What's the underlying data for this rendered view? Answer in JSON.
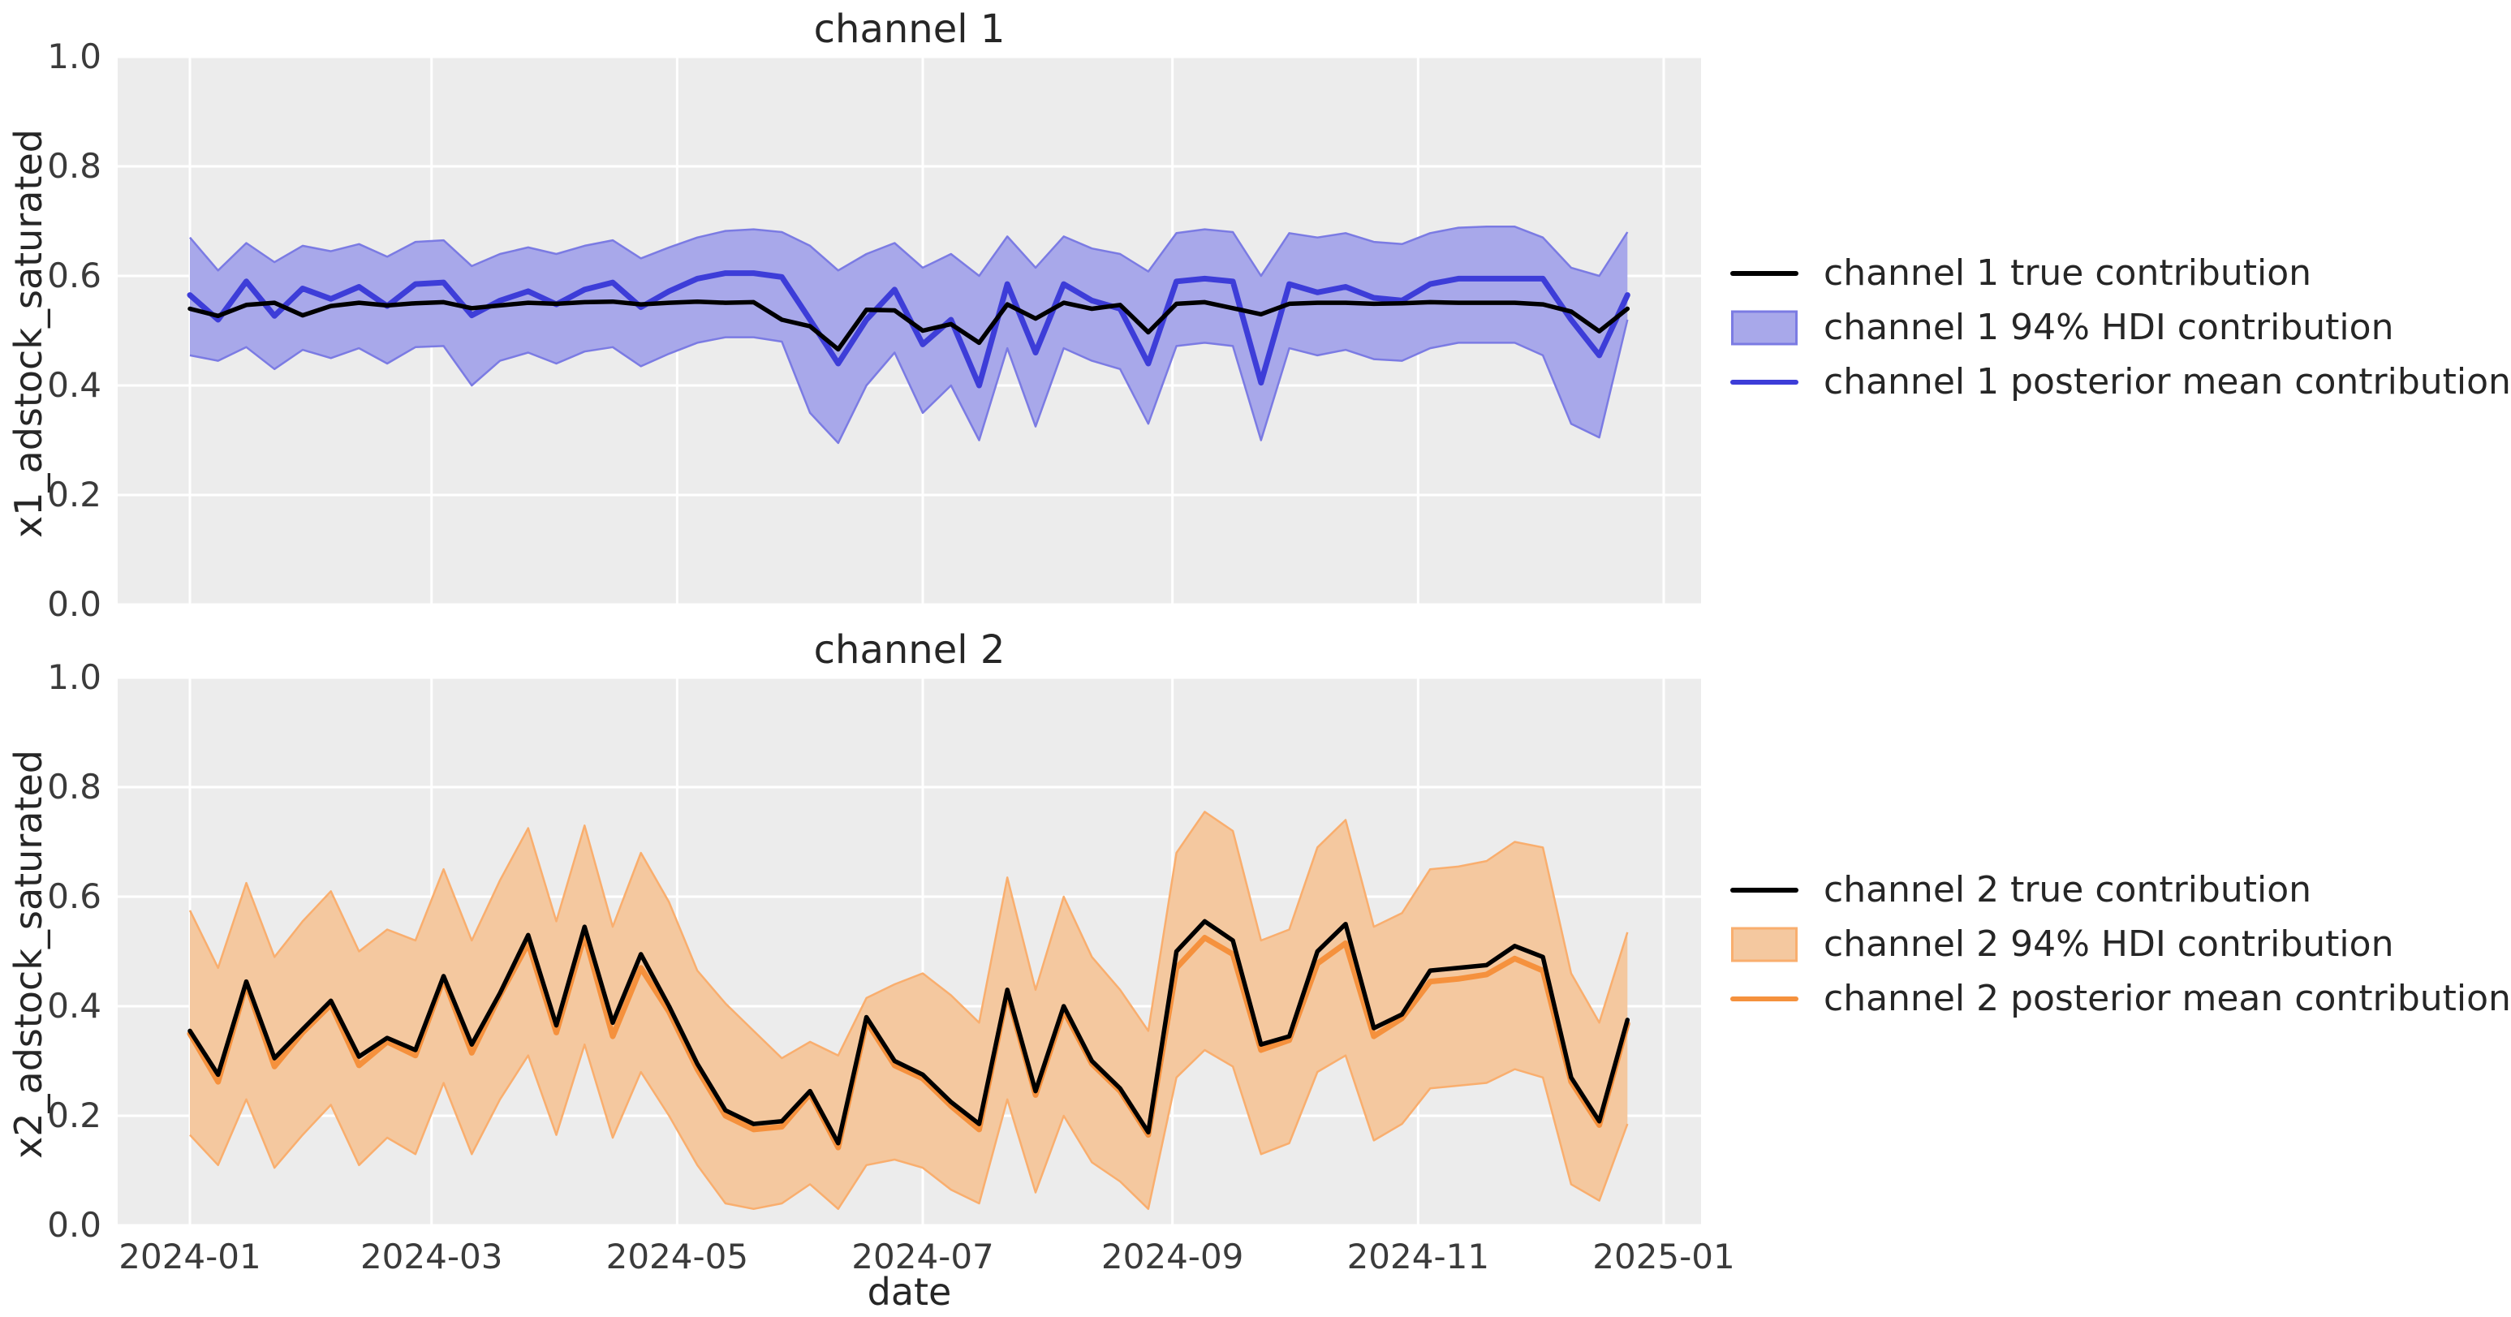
{
  "x_axis": {
    "label": "date",
    "tick_labels": [
      "2024-01",
      "2024-03",
      "2024-05",
      "2024-07",
      "2024-09",
      "2024-11",
      "2025-01"
    ]
  },
  "y_axis": {
    "tick_labels": [
      "0.0",
      "0.2",
      "0.4",
      "0.6",
      "0.8",
      "1.0"
    ]
  },
  "style": {
    "figure_background": "#ffffff",
    "axes_background": "#ececec",
    "gridline_color": "#ffffff",
    "text_color": "#262626",
    "tick_color": "#3b3b3b",
    "true_line_color": "#000000",
    "channel1_line_color": "#3d3dd8",
    "channel1_band_fill": "#a8a8ea",
    "channel1_band_edge": "#7b7be3",
    "channel2_line_color": "#f5913d",
    "channel2_band_fill": "#f4c89f",
    "channel2_band_edge": "#f9ae6e"
  },
  "chart_data": [
    {
      "type": "line",
      "title": "channel 1",
      "ylabel": "x1_adstock_saturated",
      "xlabel": "date",
      "ylim": [
        0.0,
        1.0
      ],
      "yticks": [
        0.0,
        0.2,
        0.4,
        0.6,
        0.8,
        1.0
      ],
      "grid": true,
      "legend_position": "right-outside",
      "x": [
        "2024-01-01",
        "2024-01-08",
        "2024-01-15",
        "2024-01-22",
        "2024-01-29",
        "2024-02-05",
        "2024-02-12",
        "2024-02-19",
        "2024-02-26",
        "2024-03-04",
        "2024-03-11",
        "2024-03-18",
        "2024-03-25",
        "2024-04-01",
        "2024-04-08",
        "2024-04-15",
        "2024-04-22",
        "2024-04-29",
        "2024-05-06",
        "2024-05-13",
        "2024-05-20",
        "2024-05-27",
        "2024-06-03",
        "2024-06-10",
        "2024-06-17",
        "2024-06-24",
        "2024-07-01",
        "2024-07-08",
        "2024-07-15",
        "2024-07-22",
        "2024-07-29",
        "2024-08-05",
        "2024-08-12",
        "2024-08-19",
        "2024-08-26",
        "2024-09-02",
        "2024-09-09",
        "2024-09-16",
        "2024-09-23",
        "2024-09-30",
        "2024-10-07",
        "2024-10-14",
        "2024-10-21",
        "2024-10-28",
        "2024-11-04",
        "2024-11-11",
        "2024-11-18",
        "2024-11-25",
        "2024-12-02",
        "2024-12-09",
        "2024-12-16",
        "2024-12-23"
      ],
      "series": [
        {
          "name": "channel 1 true contribution",
          "style": "line",
          "color": "#000000",
          "values": [
            0.54,
            0.527,
            0.547,
            0.551,
            0.528,
            0.545,
            0.551,
            0.546,
            0.55,
            0.552,
            0.541,
            0.546,
            0.551,
            0.549,
            0.552,
            0.553,
            0.548,
            0.551,
            0.553,
            0.551,
            0.552,
            0.52,
            0.508,
            0.466,
            0.538,
            0.537,
            0.5,
            0.512,
            0.478,
            0.548,
            0.522,
            0.551,
            0.54,
            0.547,
            0.497,
            0.549,
            0.552,
            0.541,
            0.53,
            0.549,
            0.551,
            0.551,
            0.549,
            0.55,
            0.552,
            0.551,
            0.551,
            0.551,
            0.548,
            0.535,
            0.499,
            0.54
          ]
        },
        {
          "name": "channel 1 94% HDI contribution",
          "style": "band",
          "fill": "#a8a8ea",
          "edge": "#7b7be3",
          "lower": [
            0.455,
            0.445,
            0.47,
            0.43,
            0.465,
            0.45,
            0.468,
            0.44,
            0.47,
            0.472,
            0.4,
            0.445,
            0.46,
            0.44,
            0.462,
            0.47,
            0.435,
            0.458,
            0.478,
            0.488,
            0.488,
            0.48,
            0.35,
            0.295,
            0.4,
            0.46,
            0.35,
            0.4,
            0.3,
            0.468,
            0.325,
            0.468,
            0.445,
            0.43,
            0.33,
            0.472,
            0.478,
            0.472,
            0.3,
            0.468,
            0.455,
            0.465,
            0.448,
            0.445,
            0.468,
            0.478,
            0.478,
            0.478,
            0.455,
            0.33,
            0.305,
            0.52
          ],
          "upper": [
            0.67,
            0.61,
            0.66,
            0.625,
            0.655,
            0.645,
            0.658,
            0.635,
            0.662,
            0.665,
            0.618,
            0.64,
            0.652,
            0.64,
            0.655,
            0.665,
            0.632,
            0.652,
            0.67,
            0.682,
            0.685,
            0.68,
            0.655,
            0.61,
            0.64,
            0.66,
            0.615,
            0.64,
            0.6,
            0.672,
            0.615,
            0.672,
            0.65,
            0.64,
            0.608,
            0.678,
            0.685,
            0.68,
            0.6,
            0.678,
            0.67,
            0.678,
            0.662,
            0.658,
            0.678,
            0.688,
            0.69,
            0.69,
            0.67,
            0.615,
            0.6,
            0.68
          ]
        },
        {
          "name": "channel 1 posterior mean contribution",
          "style": "line",
          "color": "#3d3dd8",
          "values": [
            0.565,
            0.52,
            0.59,
            0.527,
            0.577,
            0.558,
            0.58,
            0.545,
            0.585,
            0.588,
            0.528,
            0.555,
            0.572,
            0.548,
            0.575,
            0.588,
            0.543,
            0.572,
            0.595,
            0.605,
            0.605,
            0.598,
            0.52,
            0.44,
            0.52,
            0.575,
            0.475,
            0.52,
            0.4,
            0.585,
            0.46,
            0.585,
            0.555,
            0.54,
            0.44,
            0.59,
            0.595,
            0.59,
            0.405,
            0.585,
            0.57,
            0.58,
            0.56,
            0.555,
            0.585,
            0.595,
            0.595,
            0.595,
            0.595,
            0.52,
            0.455,
            0.565
          ]
        }
      ]
    },
    {
      "type": "line",
      "title": "channel 2",
      "ylabel": "x2_adstock_saturated",
      "xlabel": "date",
      "ylim": [
        0.0,
        1.0
      ],
      "yticks": [
        0.0,
        0.2,
        0.4,
        0.6,
        0.8,
        1.0
      ],
      "grid": true,
      "legend_position": "right-outside",
      "x": [
        "2024-01-01",
        "2024-01-08",
        "2024-01-15",
        "2024-01-22",
        "2024-01-29",
        "2024-02-05",
        "2024-02-12",
        "2024-02-19",
        "2024-02-26",
        "2024-03-04",
        "2024-03-11",
        "2024-03-18",
        "2024-03-25",
        "2024-04-01",
        "2024-04-08",
        "2024-04-15",
        "2024-04-22",
        "2024-04-29",
        "2024-05-06",
        "2024-05-13",
        "2024-05-20",
        "2024-05-27",
        "2024-06-03",
        "2024-06-10",
        "2024-06-17",
        "2024-06-24",
        "2024-07-01",
        "2024-07-08",
        "2024-07-15",
        "2024-07-22",
        "2024-07-29",
        "2024-08-05",
        "2024-08-12",
        "2024-08-19",
        "2024-08-26",
        "2024-09-02",
        "2024-09-09",
        "2024-09-16",
        "2024-09-23",
        "2024-09-30",
        "2024-10-07",
        "2024-10-14",
        "2024-10-21",
        "2024-10-28",
        "2024-11-04",
        "2024-11-11",
        "2024-11-18",
        "2024-11-25",
        "2024-12-02",
        "2024-12-09",
        "2024-12-16",
        "2024-12-23"
      ],
      "series": [
        {
          "name": "channel 2 true contribution",
          "style": "line",
          "color": "#000000",
          "values": [
            0.355,
            0.275,
            0.445,
            0.305,
            0.358,
            0.41,
            0.308,
            0.342,
            0.32,
            0.455,
            0.33,
            0.424,
            0.53,
            0.365,
            0.545,
            0.37,
            0.495,
            0.4,
            0.295,
            0.21,
            0.185,
            0.19,
            0.245,
            0.15,
            0.38,
            0.3,
            0.275,
            0.225,
            0.185,
            0.43,
            0.245,
            0.4,
            0.3,
            0.25,
            0.17,
            0.5,
            0.555,
            0.52,
            0.33,
            0.345,
            0.5,
            0.55,
            0.36,
            0.385,
            0.465,
            0.47,
            0.475,
            0.51,
            0.49,
            0.27,
            0.19,
            0.375
          ]
        },
        {
          "name": "channel 2 94% HDI contribution",
          "style": "band",
          "fill": "#f4c89f",
          "edge": "#f9ae6e",
          "lower": [
            0.165,
            0.11,
            0.23,
            0.105,
            0.165,
            0.22,
            0.11,
            0.16,
            0.13,
            0.26,
            0.13,
            0.23,
            0.31,
            0.165,
            0.33,
            0.16,
            0.28,
            0.2,
            0.11,
            0.04,
            0.03,
            0.04,
            0.075,
            0.03,
            0.11,
            0.12,
            0.105,
            0.065,
            0.04,
            0.23,
            0.06,
            0.2,
            0.115,
            0.08,
            0.03,
            0.27,
            0.32,
            0.29,
            0.13,
            0.15,
            0.28,
            0.31,
            0.155,
            0.185,
            0.25,
            0.255,
            0.26,
            0.285,
            0.27,
            0.075,
            0.045,
            0.185
          ],
          "upper": [
            0.575,
            0.47,
            0.625,
            0.49,
            0.555,
            0.61,
            0.5,
            0.54,
            0.52,
            0.65,
            0.52,
            0.63,
            0.725,
            0.555,
            0.73,
            0.545,
            0.68,
            0.59,
            0.465,
            0.405,
            0.355,
            0.305,
            0.335,
            0.31,
            0.415,
            0.44,
            0.46,
            0.42,
            0.37,
            0.635,
            0.43,
            0.6,
            0.49,
            0.43,
            0.355,
            0.68,
            0.755,
            0.72,
            0.52,
            0.54,
            0.69,
            0.74,
            0.545,
            0.57,
            0.65,
            0.655,
            0.665,
            0.7,
            0.69,
            0.46,
            0.37,
            0.535
          ]
        },
        {
          "name": "channel 2 posterior mean contribution",
          "style": "line",
          "color": "#f5913d",
          "values": [
            0.35,
            0.262,
            0.44,
            0.29,
            0.352,
            0.403,
            0.292,
            0.335,
            0.31,
            0.45,
            0.315,
            0.42,
            0.515,
            0.352,
            0.53,
            0.345,
            0.47,
            0.39,
            0.285,
            0.2,
            0.175,
            0.18,
            0.24,
            0.142,
            0.372,
            0.292,
            0.268,
            0.218,
            0.175,
            0.425,
            0.238,
            0.392,
            0.295,
            0.245,
            0.165,
            0.47,
            0.525,
            0.495,
            0.32,
            0.338,
            0.478,
            0.515,
            0.345,
            0.378,
            0.445,
            0.45,
            0.458,
            0.487,
            0.465,
            0.262,
            0.183,
            0.368
          ]
        }
      ]
    }
  ]
}
